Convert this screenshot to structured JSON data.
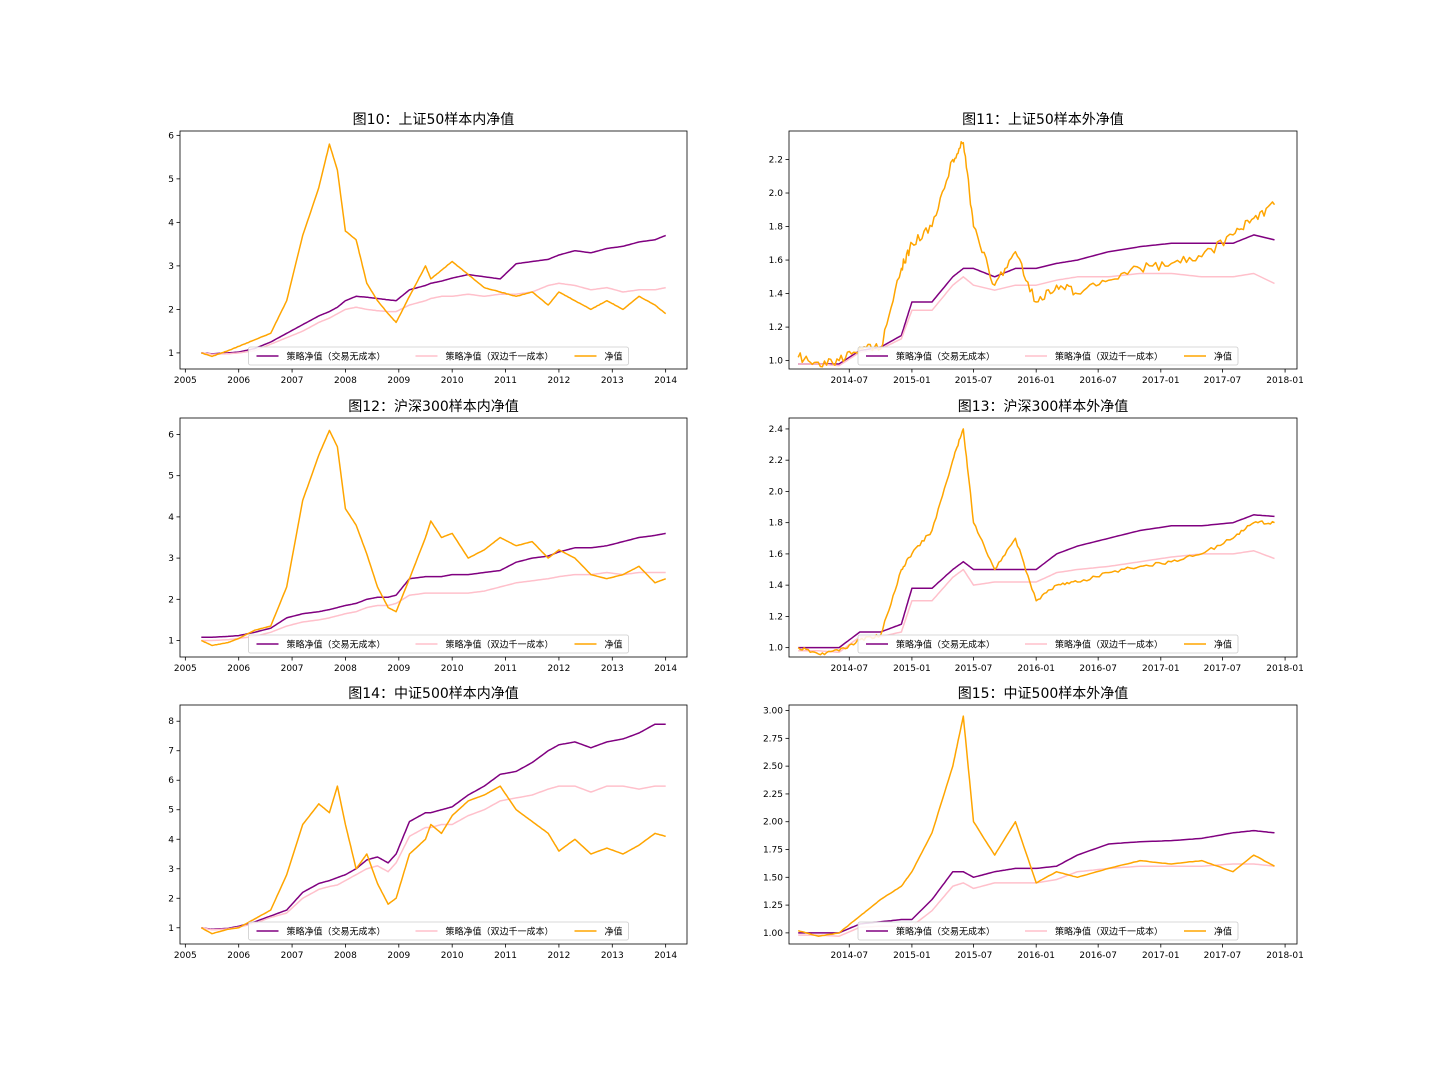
{
  "figure": {
    "background": "#ffffff"
  },
  "legend_labels": [
    "策略净值（交易无成本）",
    "策略净值（双边千一成本）",
    "净值"
  ],
  "series_colors": [
    "#800080",
    "#ffc0cb",
    "#ffa500"
  ],
  "chart_data": [
    {
      "type": "line",
      "title": "图10：上证50样本内净值",
      "xlabel": "",
      "ylabel": "",
      "x_ticks": [
        "2005",
        "2006",
        "2007",
        "2008",
        "2009",
        "2010",
        "2011",
        "2012",
        "2013",
        "2014"
      ],
      "x_tick_values": [
        2005,
        2006,
        2007,
        2008,
        2009,
        2010,
        2011,
        2012,
        2013,
        2014
      ],
      "xlim": [
        2004.9,
        2014.4
      ],
      "y_ticks": [
        "1",
        "2",
        "3",
        "4",
        "5",
        "6"
      ],
      "y_tick_values": [
        1,
        2,
        3,
        4,
        5,
        6
      ],
      "ylim": [
        0.63,
        6.1
      ],
      "legend": "lower-center",
      "x": [
        2005.3,
        2005.5,
        2005.8,
        2006.0,
        2006.3,
        2006.6,
        2006.9,
        2007.2,
        2007.5,
        2007.7,
        2007.85,
        2008.0,
        2008.2,
        2008.4,
        2008.6,
        2008.8,
        2008.95,
        2009.2,
        2009.5,
        2009.6,
        2009.8,
        2010.0,
        2010.3,
        2010.6,
        2010.9,
        2011.2,
        2011.5,
        2011.8,
        2012.0,
        2012.3,
        2012.6,
        2012.9,
        2013.2,
        2013.5,
        2013.8,
        2014.0
      ],
      "series": [
        {
          "name": "策略净值（交易无成本）",
          "values": [
            1.0,
            0.98,
            1.0,
            1.02,
            1.1,
            1.25,
            1.45,
            1.65,
            1.85,
            1.95,
            2.05,
            2.2,
            2.3,
            2.28,
            2.25,
            2.22,
            2.2,
            2.45,
            2.55,
            2.6,
            2.65,
            2.72,
            2.8,
            2.75,
            2.7,
            3.05,
            3.1,
            3.15,
            3.25,
            3.35,
            3.3,
            3.4,
            3.45,
            3.55,
            3.6,
            3.7
          ]
        },
        {
          "name": "策略净值（双边千一成本）",
          "values": [
            1.0,
            0.97,
            0.98,
            1.0,
            1.05,
            1.2,
            1.35,
            1.5,
            1.7,
            1.8,
            1.9,
            2.0,
            2.05,
            2.0,
            1.97,
            1.95,
            1.95,
            2.1,
            2.2,
            2.25,
            2.3,
            2.3,
            2.35,
            2.3,
            2.35,
            2.35,
            2.4,
            2.55,
            2.6,
            2.55,
            2.45,
            2.5,
            2.4,
            2.45,
            2.45,
            2.5
          ]
        },
        {
          "name": "净值",
          "values": [
            1.0,
            0.92,
            1.05,
            1.15,
            1.3,
            1.45,
            2.2,
            3.7,
            4.8,
            5.8,
            5.2,
            3.8,
            3.6,
            2.6,
            2.2,
            1.9,
            1.7,
            2.3,
            3.0,
            2.7,
            2.9,
            3.1,
            2.8,
            2.5,
            2.4,
            2.3,
            2.4,
            2.1,
            2.4,
            2.2,
            2.0,
            2.2,
            2.0,
            2.3,
            2.1,
            1.9
          ]
        }
      ]
    },
    {
      "type": "line",
      "title": "图11：上证50样本外净值",
      "xlabel": "",
      "ylabel": "",
      "x_ticks": [
        "2014-07",
        "2015-01",
        "2015-07",
        "2016-01",
        "2016-07",
        "2017-01",
        "2017-07",
        "2018-01"
      ],
      "x_tick_values": [
        "2014-07",
        "2015-01",
        "2015-07",
        "2016-01",
        "2016-07",
        "2017-01",
        "2017-07",
        "2018-01"
      ],
      "xlim": [
        "2014-01-05",
        "2018-02-05"
      ],
      "y_ticks": [
        "1.0",
        "1.2",
        "1.4",
        "1.6",
        "1.8",
        "2.0",
        "2.2"
      ],
      "y_tick_values": [
        1.0,
        1.2,
        1.4,
        1.6,
        1.8,
        2.0,
        2.2
      ],
      "ylim": [
        0.95,
        2.37
      ],
      "legend": "lower-center",
      "x": [
        "2014-02",
        "2014-04",
        "2014-06",
        "2014-08",
        "2014-10",
        "2014-12",
        "2015-01",
        "2015-03",
        "2015-05",
        "2015-06",
        "2015-07",
        "2015-09",
        "2015-11",
        "2016-01",
        "2016-03",
        "2016-05",
        "2016-08",
        "2016-11",
        "2017-02",
        "2017-05",
        "2017-08",
        "2017-10",
        "2017-12"
      ],
      "series": [
        {
          "name": "策略净值（交易无成本）",
          "values": [
            0.98,
            0.98,
            0.98,
            1.06,
            1.08,
            1.15,
            1.35,
            1.35,
            1.5,
            1.55,
            1.55,
            1.5,
            1.55,
            1.55,
            1.58,
            1.6,
            1.65,
            1.68,
            1.7,
            1.7,
            1.7,
            1.75,
            1.72
          ]
        },
        {
          "name": "策略净值（双边千一成本）",
          "values": [
            0.98,
            0.98,
            0.97,
            1.05,
            1.07,
            1.13,
            1.3,
            1.3,
            1.45,
            1.5,
            1.45,
            1.42,
            1.45,
            1.45,
            1.48,
            1.5,
            1.5,
            1.52,
            1.52,
            1.5,
            1.5,
            1.52,
            1.46
          ]
        },
        {
          "name": "净值",
          "values": [
            1.02,
            0.99,
            1.0,
            1.08,
            1.07,
            1.55,
            1.7,
            1.8,
            2.2,
            2.3,
            1.8,
            1.45,
            1.65,
            1.35,
            1.45,
            1.4,
            1.48,
            1.55,
            1.58,
            1.62,
            1.75,
            1.85,
            1.93
          ]
        }
      ]
    },
    {
      "type": "line",
      "title": "图12：沪深300样本内净值",
      "xlabel": "",
      "ylabel": "",
      "x_ticks": [
        "2005",
        "2006",
        "2007",
        "2008",
        "2009",
        "2010",
        "2011",
        "2012",
        "2013",
        "2014"
      ],
      "x_tick_values": [
        2005,
        2006,
        2007,
        2008,
        2009,
        2010,
        2011,
        2012,
        2013,
        2014
      ],
      "xlim": [
        2004.9,
        2014.4
      ],
      "y_ticks": [
        "1",
        "2",
        "3",
        "4",
        "5",
        "6"
      ],
      "y_tick_values": [
        1,
        2,
        3,
        4,
        5,
        6
      ],
      "ylim": [
        0.6,
        6.4
      ],
      "legend": "lower-center",
      "x": [
        2005.3,
        2005.5,
        2005.8,
        2006.0,
        2006.3,
        2006.6,
        2006.9,
        2007.2,
        2007.5,
        2007.7,
        2007.85,
        2008.0,
        2008.2,
        2008.4,
        2008.6,
        2008.8,
        2008.95,
        2009.2,
        2009.5,
        2009.6,
        2009.8,
        2010.0,
        2010.3,
        2010.6,
        2010.9,
        2011.2,
        2011.5,
        2011.8,
        2012.0,
        2012.3,
        2012.6,
        2012.9,
        2013.2,
        2013.5,
        2013.8,
        2014.0
      ],
      "series": [
        {
          "name": "策略净值（交易无成本）",
          "values": [
            1.08,
            1.08,
            1.1,
            1.12,
            1.2,
            1.3,
            1.55,
            1.65,
            1.7,
            1.75,
            1.8,
            1.85,
            1.9,
            2.0,
            2.05,
            2.05,
            2.1,
            2.5,
            2.55,
            2.55,
            2.55,
            2.6,
            2.6,
            2.65,
            2.7,
            2.9,
            3.0,
            3.05,
            3.15,
            3.25,
            3.25,
            3.3,
            3.4,
            3.5,
            3.55,
            3.6
          ]
        },
        {
          "name": "策略净值（双边千一成本）",
          "values": [
            1.0,
            1.0,
            1.02,
            1.05,
            1.1,
            1.2,
            1.35,
            1.45,
            1.5,
            1.55,
            1.6,
            1.65,
            1.7,
            1.8,
            1.85,
            1.85,
            1.9,
            2.1,
            2.15,
            2.15,
            2.15,
            2.15,
            2.15,
            2.2,
            2.3,
            2.4,
            2.45,
            2.5,
            2.55,
            2.6,
            2.6,
            2.65,
            2.6,
            2.65,
            2.65,
            2.65
          ]
        },
        {
          "name": "净值",
          "values": [
            1.0,
            0.88,
            0.95,
            1.05,
            1.25,
            1.35,
            2.3,
            4.4,
            5.5,
            6.1,
            5.7,
            4.2,
            3.8,
            3.1,
            2.3,
            1.8,
            1.7,
            2.5,
            3.5,
            3.9,
            3.5,
            3.6,
            3.0,
            3.2,
            3.5,
            3.3,
            3.4,
            3.0,
            3.2,
            3.0,
            2.6,
            2.5,
            2.6,
            2.8,
            2.4,
            2.5
          ]
        }
      ]
    },
    {
      "type": "line",
      "title": "图13：沪深300样本外净值",
      "xlabel": "",
      "ylabel": "",
      "x_ticks": [
        "2014-07",
        "2015-01",
        "2015-07",
        "2016-01",
        "2016-07",
        "2017-01",
        "2017-07",
        "2018-01"
      ],
      "x_tick_values": [
        "2014-07",
        "2015-01",
        "2015-07",
        "2016-01",
        "2016-07",
        "2017-01",
        "2017-07",
        "2018-01"
      ],
      "xlim": [
        "2014-01-05",
        "2018-02-05"
      ],
      "y_ticks": [
        "1.0",
        "1.2",
        "1.4",
        "1.6",
        "1.8",
        "2.0",
        "2.2",
        "2.4"
      ],
      "y_tick_values": [
        1.0,
        1.2,
        1.4,
        1.6,
        1.8,
        2.0,
        2.2,
        2.4
      ],
      "ylim": [
        0.94,
        2.47
      ],
      "legend": "lower-center",
      "x": [
        "2014-02",
        "2014-04",
        "2014-06",
        "2014-08",
        "2014-10",
        "2014-12",
        "2015-01",
        "2015-03",
        "2015-05",
        "2015-06",
        "2015-07",
        "2015-09",
        "2015-11",
        "2016-01",
        "2016-03",
        "2016-05",
        "2016-08",
        "2016-11",
        "2017-02",
        "2017-05",
        "2017-08",
        "2017-10",
        "2017-12"
      ],
      "series": [
        {
          "name": "策略净值（交易无成本）",
          "values": [
            1.0,
            1.0,
            1.0,
            1.1,
            1.1,
            1.15,
            1.38,
            1.38,
            1.5,
            1.55,
            1.5,
            1.5,
            1.5,
            1.5,
            1.6,
            1.65,
            1.7,
            1.75,
            1.78,
            1.78,
            1.8,
            1.85,
            1.84
          ]
        },
        {
          "name": "策略净值（双边千一成本）",
          "values": [
            0.98,
            0.98,
            0.97,
            1.07,
            1.07,
            1.1,
            1.3,
            1.3,
            1.45,
            1.5,
            1.4,
            1.42,
            1.42,
            1.42,
            1.48,
            1.5,
            1.52,
            1.55,
            1.58,
            1.6,
            1.6,
            1.62,
            1.57
          ]
        },
        {
          "name": "净值",
          "values": [
            1.0,
            0.96,
            0.98,
            1.05,
            1.08,
            1.5,
            1.6,
            1.75,
            2.2,
            2.4,
            1.8,
            1.5,
            1.7,
            1.3,
            1.4,
            1.42,
            1.48,
            1.52,
            1.55,
            1.6,
            1.7,
            1.8,
            1.8
          ]
        }
      ]
    },
    {
      "type": "line",
      "title": "图14：中证500样本内净值",
      "xlabel": "",
      "ylabel": "",
      "x_ticks": [
        "2005",
        "2006",
        "2007",
        "2008",
        "2009",
        "2010",
        "2011",
        "2012",
        "2013",
        "2014"
      ],
      "x_tick_values": [
        2005,
        2006,
        2007,
        2008,
        2009,
        2010,
        2011,
        2012,
        2013,
        2014
      ],
      "xlim": [
        2004.9,
        2014.4
      ],
      "y_ticks": [
        "1",
        "2",
        "3",
        "4",
        "5",
        "6",
        "7",
        "8"
      ],
      "y_tick_values": [
        1,
        2,
        3,
        4,
        5,
        6,
        7,
        8
      ],
      "ylim": [
        0.45,
        8.55
      ],
      "legend": "lower-center",
      "x": [
        2005.3,
        2005.5,
        2005.8,
        2006.0,
        2006.3,
        2006.6,
        2006.9,
        2007.2,
        2007.5,
        2007.7,
        2007.85,
        2008.0,
        2008.2,
        2008.4,
        2008.6,
        2008.8,
        2008.95,
        2009.2,
        2009.5,
        2009.6,
        2009.8,
        2010.0,
        2010.3,
        2010.6,
        2010.9,
        2011.2,
        2011.5,
        2011.8,
        2012.0,
        2012.3,
        2012.6,
        2012.9,
        2013.2,
        2013.5,
        2013.8,
        2014.0
      ],
      "series": [
        {
          "name": "策略净值（交易无成本）",
          "values": [
            1.0,
            0.95,
            0.98,
            1.05,
            1.2,
            1.4,
            1.6,
            2.2,
            2.5,
            2.6,
            2.7,
            2.8,
            3.0,
            3.3,
            3.4,
            3.2,
            3.5,
            4.6,
            4.9,
            4.9,
            5.0,
            5.1,
            5.5,
            5.8,
            6.2,
            6.3,
            6.6,
            7.0,
            7.2,
            7.3,
            7.1,
            7.3,
            7.4,
            7.6,
            7.9,
            7.9
          ]
        },
        {
          "name": "策略净值（双边千一成本）",
          "values": [
            1.0,
            0.93,
            0.96,
            1.02,
            1.15,
            1.35,
            1.5,
            2.0,
            2.3,
            2.4,
            2.45,
            2.6,
            2.8,
            3.0,
            3.1,
            2.9,
            3.2,
            4.1,
            4.4,
            4.4,
            4.5,
            4.5,
            4.8,
            5.0,
            5.3,
            5.4,
            5.5,
            5.7,
            5.8,
            5.8,
            5.6,
            5.8,
            5.8,
            5.7,
            5.8,
            5.8
          ]
        },
        {
          "name": "净值",
          "values": [
            1.0,
            0.8,
            0.95,
            1.0,
            1.3,
            1.6,
            2.8,
            4.5,
            5.2,
            4.9,
            5.8,
            4.5,
            3.0,
            3.5,
            2.5,
            1.8,
            2.0,
            3.5,
            4.0,
            4.5,
            4.2,
            4.8,
            5.3,
            5.5,
            5.8,
            5.0,
            4.6,
            4.2,
            3.6,
            4.0,
            3.5,
            3.7,
            3.5,
            3.8,
            4.2,
            4.1
          ]
        }
      ]
    },
    {
      "type": "line",
      "title": "图15：中证500样本外净值",
      "xlabel": "",
      "ylabel": "",
      "x_ticks": [
        "2014-07",
        "2015-01",
        "2015-07",
        "2016-01",
        "2016-07",
        "2017-01",
        "2017-07",
        "2018-01"
      ],
      "x_tick_values": [
        "2014-07",
        "2015-01",
        "2015-07",
        "2016-01",
        "2016-07",
        "2017-01",
        "2017-07",
        "2018-01"
      ],
      "xlim": [
        "2014-01-05",
        "2018-02-05"
      ],
      "y_ticks": [
        "1.00",
        "1.25",
        "1.50",
        "1.75",
        "2.00",
        "2.25",
        "2.50",
        "2.75",
        "3.00"
      ],
      "y_tick_values": [
        1.0,
        1.25,
        1.5,
        1.75,
        2.0,
        2.25,
        2.5,
        2.75,
        3.0
      ],
      "ylim": [
        0.9,
        3.05
      ],
      "legend": "lower-center",
      "x": [
        "2014-02",
        "2014-04",
        "2014-06",
        "2014-08",
        "2014-10",
        "2014-12",
        "2015-01",
        "2015-03",
        "2015-05",
        "2015-06",
        "2015-07",
        "2015-09",
        "2015-11",
        "2016-01",
        "2016-03",
        "2016-05",
        "2016-08",
        "2016-11",
        "2017-02",
        "2017-05",
        "2017-08",
        "2017-10",
        "2017-12"
      ],
      "series": [
        {
          "name": "策略净值（交易无成本）",
          "values": [
            1.0,
            1.0,
            1.0,
            1.08,
            1.1,
            1.12,
            1.12,
            1.3,
            1.55,
            1.55,
            1.5,
            1.55,
            1.58,
            1.58,
            1.6,
            1.7,
            1.8,
            1.82,
            1.83,
            1.85,
            1.9,
            1.92,
            1.9
          ]
        },
        {
          "name": "策略净值（双边千一成本）",
          "values": [
            0.98,
            0.98,
            0.97,
            1.05,
            1.06,
            1.06,
            1.06,
            1.2,
            1.42,
            1.45,
            1.4,
            1.45,
            1.45,
            1.45,
            1.48,
            1.55,
            1.58,
            1.6,
            1.6,
            1.6,
            1.62,
            1.62,
            1.6
          ]
        },
        {
          "name": "净值",
          "values": [
            1.02,
            0.97,
            1.0,
            1.15,
            1.3,
            1.42,
            1.55,
            1.9,
            2.5,
            2.95,
            2.0,
            1.7,
            2.0,
            1.45,
            1.55,
            1.5,
            1.58,
            1.65,
            1.62,
            1.65,
            1.55,
            1.7,
            1.6
          ]
        }
      ]
    }
  ]
}
